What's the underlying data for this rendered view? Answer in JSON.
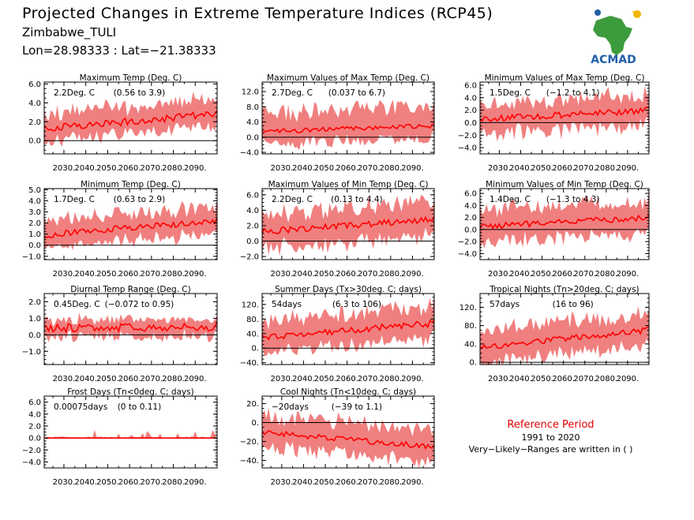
{
  "header": {
    "title": "Projected Changes in Extreme Temperature Indices (RCP45)",
    "location": "Zimbabwe_TULI",
    "coords": "Lon=28.98333 : Lat=−21.38333"
  },
  "logo": {
    "text": "ACMAD",
    "icon": "africa-map-logo-icon",
    "color": "#1f5fa8",
    "map_color": "#3c9b3c"
  },
  "reference": {
    "title": "Reference Period",
    "years": "1991 to 2020",
    "note": "Very−Likely−Ranges are written in ( )"
  },
  "colors": {
    "band": "#f08080",
    "line": "#ff0000",
    "zero": "#000000"
  },
  "x_tick_labels": [
    "2030.",
    "2040.",
    "2050.",
    "2060.",
    "2070.",
    "2080.",
    "2090."
  ],
  "chart_data": [
    {
      "type": "area",
      "title": "Maximum Temp (Deg. C)",
      "stat": "2.2Deg. C",
      "range": "(0.56 to 3.9)",
      "x_start": 2021,
      "x_end": 2100,
      "ylim": [
        -1.4,
        6.2
      ],
      "yticks": [
        0.0,
        2.0,
        4.0,
        6.0
      ],
      "ytick_labels": [
        "0.0",
        "2.0",
        "4.0",
        "6.0"
      ],
      "mean_start": 1.3,
      "mean_end": 2.8,
      "band_low": 1.3,
      "band_high": 1.6,
      "wiggle": 0.4
    },
    {
      "type": "area",
      "title": "Maximum Values of Max Temp (Deg. C)",
      "stat": "2.7Deg. C",
      "range": "(0.037 to 6.7)",
      "x_start": 2021,
      "x_end": 2100,
      "ylim": [
        -4.4,
        14.5
      ],
      "yticks": [
        -4.0,
        0.0,
        4.0,
        8.0,
        12.0
      ],
      "ytick_labels": [
        "−4.0",
        "0.0",
        "4.0",
        "8.0",
        "12.0"
      ],
      "mean_start": 1.5,
      "mean_end": 3.0,
      "band_low": 3.5,
      "band_high": 5.0,
      "wiggle": 0.6
    },
    {
      "type": "area",
      "title": "Minimum Values of Max Temp (Deg. C)",
      "stat": "1.5Deg. C",
      "range": "(−1.2 to 4.1)",
      "x_start": 2021,
      "x_end": 2100,
      "ylim": [
        -5.0,
        6.5
      ],
      "yticks": [
        -4.0,
        -2.0,
        0.0,
        2.0,
        4.0,
        6.0
      ],
      "ytick_labels": [
        "−4.0",
        "−2.0",
        "0.0",
        "2.0",
        "4.0",
        "6.0"
      ],
      "mean_start": 0.5,
      "mean_end": 2.0,
      "band_low": 2.4,
      "band_high": 2.5,
      "wiggle": 0.5
    },
    {
      "type": "area",
      "title": "Minimum Temp (Deg. C)",
      "stat": "1.7Deg. C",
      "range": "(0.63 to 2.9)",
      "x_start": 2021,
      "x_end": 2100,
      "ylim": [
        -1.3,
        5.1
      ],
      "yticks": [
        -1.0,
        0.0,
        1.0,
        2.0,
        3.0,
        4.0,
        5.0
      ],
      "ytick_labels": [
        "−1.0",
        "0.0",
        "1.0",
        "2.0",
        "3.0",
        "4.0",
        "5.0"
      ],
      "mean_start": 0.9,
      "mean_end": 2.2,
      "band_low": 1.1,
      "band_high": 1.3,
      "wiggle": 0.3
    },
    {
      "type": "area",
      "title": "Maximum Values of Min Temp (Deg. C)",
      "stat": "2.2Deg. C",
      "range": "(0.13 to 4.4)",
      "x_start": 2021,
      "x_end": 2100,
      "ylim": [
        -2.4,
        6.8
      ],
      "yticks": [
        -2.0,
        0.0,
        2.0,
        4.0,
        6.0
      ],
      "ytick_labels": [
        "−2.0",
        "0.0",
        "2.0",
        "4.0",
        "6.0"
      ],
      "mean_start": 1.2,
      "mean_end": 2.8,
      "band_low": 2.2,
      "band_high": 2.3,
      "wiggle": 0.4
    },
    {
      "type": "area",
      "title": "Minimum Values of Min Temp (Deg. C)",
      "stat": "1.4Deg. C",
      "range": "(−1.3 to 4.3)",
      "x_start": 2021,
      "x_end": 2100,
      "ylim": [
        -5.0,
        6.8
      ],
      "yticks": [
        -4.0,
        -2.0,
        0.0,
        2.0,
        4.0,
        6.0
      ],
      "ytick_labels": [
        "−4.0",
        "−2.0",
        "0.0",
        "2.0",
        "4.0",
        "6.0"
      ],
      "mean_start": 0.5,
      "mean_end": 2.0,
      "band_low": 2.8,
      "band_high": 2.8,
      "wiggle": 0.5
    },
    {
      "type": "area",
      "title": "Diurnal Temp Range (Deg. C)",
      "stat": "0.45Deg. C",
      "range": "(−0.072 to 0.95)",
      "x_start": 2021,
      "x_end": 2100,
      "ylim": [
        -1.8,
        2.5
      ],
      "yticks": [
        -1.0,
        0.0,
        1.0,
        2.0
      ],
      "ytick_labels": [
        "−1.0",
        "0.0",
        "1.0",
        "2.0"
      ],
      "mean_start": 0.4,
      "mean_end": 0.5,
      "band_low": 0.5,
      "band_high": 0.5,
      "wiggle": 0.25
    },
    {
      "type": "area",
      "title": "Summer Days (Tx>30deg. C; days)",
      "stat": "54days",
      "range": "(6.3 to 106)",
      "x_start": 2021,
      "x_end": 2100,
      "ylim": [
        -45,
        150
      ],
      "yticks": [
        -40,
        0,
        40,
        80,
        120
      ],
      "ytick_labels": [
        "−40.",
        "0.",
        "40.",
        "80.",
        "120."
      ],
      "mean_start": 30,
      "mean_end": 68,
      "band_low": 40,
      "band_high": 45,
      "wiggle": 9
    },
    {
      "type": "area",
      "title": "Tropical Nights (Tn>20deg. C; days)",
      "stat": "57days",
      "range": "(16 to 96)",
      "x_start": 2021,
      "x_end": 2100,
      "ylim": [
        -5,
        150
      ],
      "yticks": [
        0,
        40,
        80,
        120
      ],
      "ytick_labels": [
        "0.",
        "40.",
        "80.",
        "120."
      ],
      "mean_start": 32,
      "mean_end": 70,
      "band_low": 32,
      "band_high": 38,
      "wiggle": 7
    },
    {
      "type": "area",
      "title": "Frost Days (Tn<0deg. C; days)",
      "stat": "0.00075days",
      "range": "(0 to 0.11)",
      "x_start": 2021,
      "x_end": 2100,
      "ylim": [
        -5.0,
        7.0
      ],
      "yticks": [
        -4.0,
        -2.0,
        0.0,
        2.0,
        4.0,
        6.0
      ],
      "ytick_labels": [
        "−4.0",
        "−2.0",
        "0.0",
        "2.0",
        "4.0",
        "6.0"
      ],
      "mean_start": 0.0,
      "mean_end": 0.0,
      "band_low": 0.0,
      "band_high": 0.25,
      "wiggle": 0.0
    },
    {
      "type": "area",
      "title": "Cool Nights (Tn<10deg. C; days)",
      "stat": "−20days",
      "range": "(−39 to 1.1)",
      "x_start": 2021,
      "x_end": 2100,
      "ylim": [
        -48,
        28
      ],
      "yticks": [
        -40,
        -20,
        0,
        20
      ],
      "ytick_labels": [
        "−40.",
        "−20.",
        "0.",
        "20."
      ],
      "mean_start": -10,
      "mean_end": -26,
      "band_low": 16,
      "band_high": 18,
      "wiggle": 3
    }
  ]
}
